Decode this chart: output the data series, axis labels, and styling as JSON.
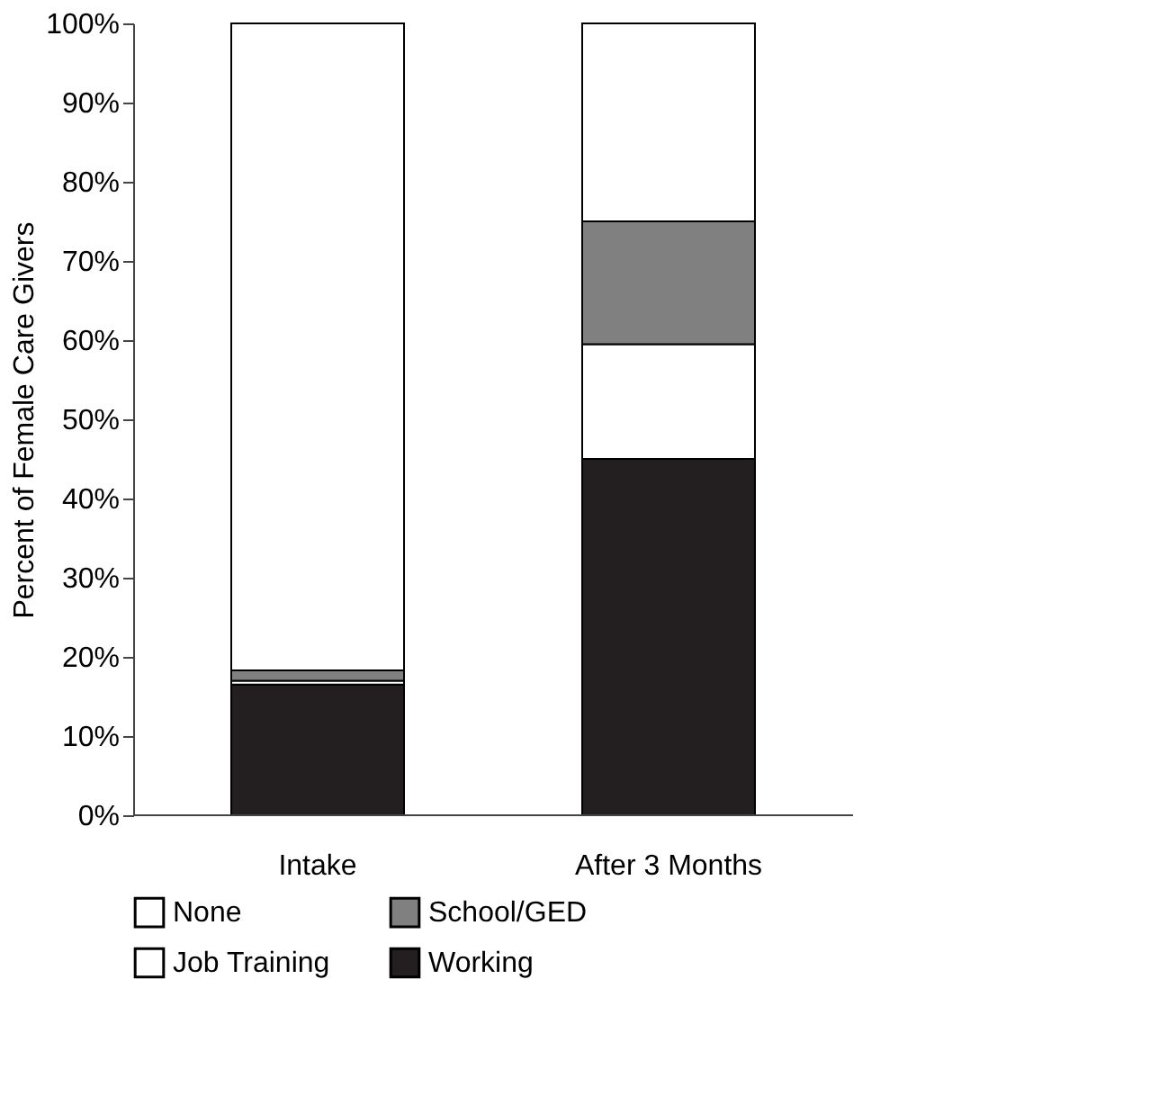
{
  "chart_data": {
    "type": "bar",
    "stacked": true,
    "ylabel": "Percent of Female Care Givers",
    "categories": [
      "Intake",
      "After 3 Months"
    ],
    "series": [
      {
        "name": "Working",
        "color": "#231f20",
        "values": [
          16.5,
          45
        ]
      },
      {
        "name": "Job Training",
        "color": "#ffffff",
        "values": [
          0.5,
          14.5
        ]
      },
      {
        "name": "School/GED",
        "color": "#808080",
        "values": [
          1.3,
          15.5
        ]
      },
      {
        "name": "None",
        "color": "#ffffff",
        "values": [
          81.7,
          25
        ]
      }
    ],
    "ylim": [
      0,
      100
    ],
    "yticks": [
      {
        "value": 0,
        "label": "0%"
      },
      {
        "value": 10,
        "label": "10%"
      },
      {
        "value": 20,
        "label": "20%"
      },
      {
        "value": 30,
        "label": "30%"
      },
      {
        "value": 40,
        "label": "40%"
      },
      {
        "value": 50,
        "label": "50%"
      },
      {
        "value": 60,
        "label": "60%"
      },
      {
        "value": 70,
        "label": "70%"
      },
      {
        "value": 80,
        "label": "80%"
      },
      {
        "value": 90,
        "label": "90%"
      },
      {
        "value": 100,
        "label": "100%"
      }
    ],
    "grid": false,
    "legend": "bottom"
  }
}
